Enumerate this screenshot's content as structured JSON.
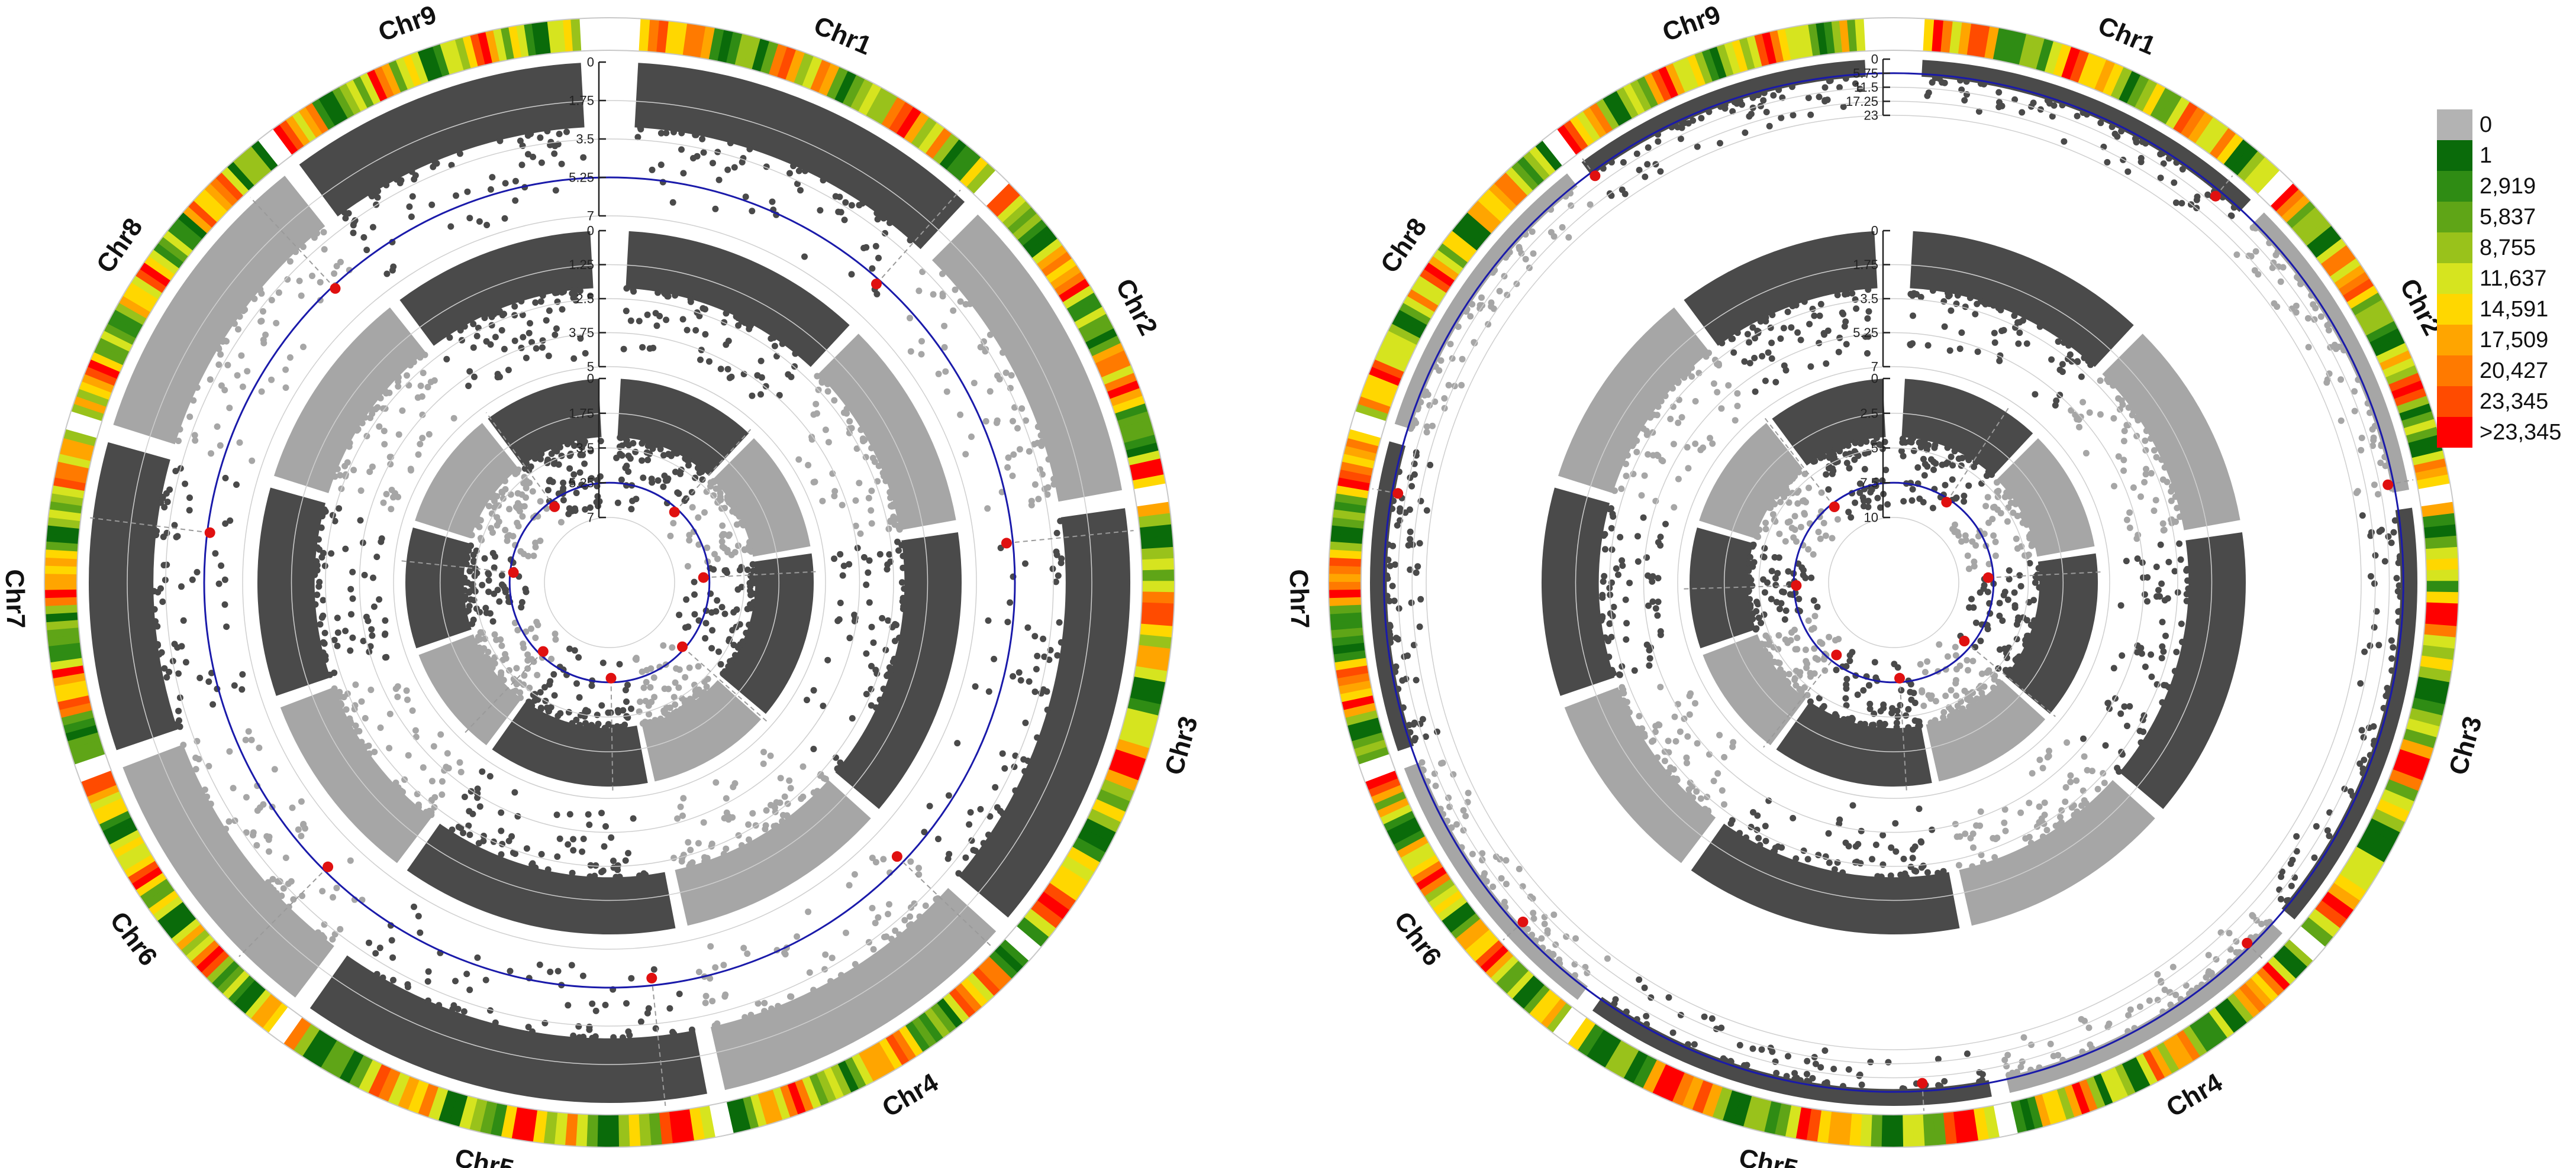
{
  "chart_data": {
    "type": "circular-manhattan",
    "chromosomes": [
      "Chr1",
      "Chr2",
      "Chr3",
      "Chr4",
      "Chr5",
      "Chr6",
      "Chr7",
      "Chr8",
      "Chr9"
    ],
    "chromosome_weights": [
      0.118,
      0.103,
      0.143,
      0.104,
      0.136,
      0.095,
      0.102,
      0.1,
      0.099
    ],
    "density_legend": {
      "labels": [
        "0",
        "1",
        "2,919",
        "5,837",
        "8,755",
        "11,637",
        "14,591",
        "17,509",
        "20,427",
        "23,345",
        ">23,345"
      ],
      "colors": [
        "#b3b3b3",
        "#0a6b0a",
        "#2f8c14",
        "#5fa517",
        "#99c21b",
        "#d6e41f",
        "#ffd700",
        "#ffa500",
        "#ff7a00",
        "#ff4b00",
        "#ff0000"
      ]
    },
    "colors": {
      "dark_point": "#4a4a4a",
      "light_point": "#a6a6a6",
      "threshold": "#1a1aaa",
      "significant": "#e01010",
      "ring_grid": "#cfcfcf",
      "guide": "#9a9a9a"
    },
    "panels": [
      {
        "name": "",
        "tracks": [
          {
            "axis_ticks": [
              "0",
              "1.75",
              "3.5",
              "5.25",
              "7"
            ],
            "max": 7,
            "threshold": 5.25
          },
          {
            "axis_ticks": [
              "0",
              "1.25",
              "2.5",
              "3.75",
              "5"
            ],
            "max": 5,
            "threshold": null
          },
          {
            "axis_ticks": [
              "0",
              "1.75",
              "3.5",
              "5.25",
              "7"
            ],
            "max": 7,
            "threshold": 5.25
          }
        ]
      },
      {
        "name": "",
        "tracks": [
          {
            "axis_ticks": [
              "0",
              "5.75",
              "11.5",
              "17.25",
              "23"
            ],
            "max": 23,
            "threshold": 5.75
          },
          {
            "axis_ticks": [
              "0",
              "1.75",
              "3.5",
              "5.25",
              "7"
            ],
            "max": 7,
            "threshold": null
          },
          {
            "axis_ticks": [
              "0",
              "2.5",
              "5",
              "7.5",
              "10"
            ],
            "max": 10,
            "threshold": 7.5
          }
        ]
      }
    ]
  }
}
